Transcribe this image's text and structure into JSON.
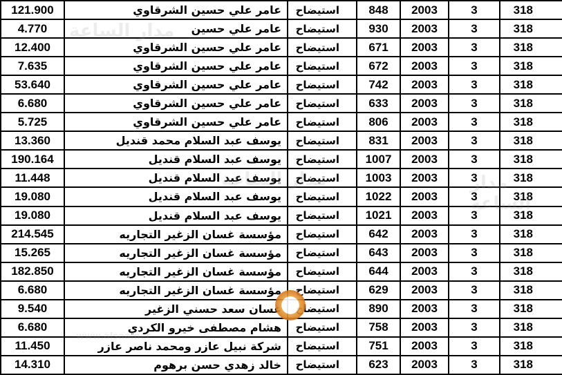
{
  "rows": [
    {
      "amount": "121.900",
      "name": "عامر علي حسين الشرقاوي",
      "type": "استيضاح",
      "number": "848",
      "year": "2003",
      "code": "3",
      "section": "318"
    },
    {
      "amount": "4.770",
      "name": "عامر علي حسين",
      "type": "استيضاح",
      "number": "930",
      "year": "2003",
      "code": "3",
      "section": "318"
    },
    {
      "amount": "12.400",
      "name": "عامر علي حسين الشرقاوي",
      "type": "استيضاح",
      "number": "671",
      "year": "2003",
      "code": "3",
      "section": "318"
    },
    {
      "amount": "7.635",
      "name": "عامر علي حسين الشرقاوي",
      "type": "استيضاح",
      "number": "672",
      "year": "2003",
      "code": "3",
      "section": "318"
    },
    {
      "amount": "53.640",
      "name": "عامر علي حسين الشرقاوي",
      "type": "استيضاح",
      "number": "742",
      "year": "2003",
      "code": "3",
      "section": "318"
    },
    {
      "amount": "6.680",
      "name": "عامر علي حسين الشرقاوي",
      "type": "استيضاح",
      "number": "633",
      "year": "2003",
      "code": "3",
      "section": "318"
    },
    {
      "amount": "5.725",
      "name": "عامر علي حسين الشرقاوي",
      "type": "استيضاح",
      "number": "806",
      "year": "2003",
      "code": "3",
      "section": "318"
    },
    {
      "amount": "13.360",
      "name": "يوسف عبد السلام محمد قنديل",
      "type": "استيضاح",
      "number": "831",
      "year": "2003",
      "code": "3",
      "section": "318"
    },
    {
      "amount": "190.164",
      "name": "يوسف عبد السلام قنديل",
      "type": "استيضاح",
      "number": "1007",
      "year": "2003",
      "code": "3",
      "section": "318"
    },
    {
      "amount": "11.448",
      "name": "يوسف عبد السلام قنديل",
      "type": "استيضاح",
      "number": "1003",
      "year": "2003",
      "code": "3",
      "section": "318"
    },
    {
      "amount": "19.080",
      "name": "يوسف عبد السلام قنديل",
      "type": "استيضاح",
      "number": "1022",
      "year": "2003",
      "code": "3",
      "section": "318"
    },
    {
      "amount": "19.080",
      "name": "يوسف عبد السلام قنديل",
      "type": "استيضاح",
      "number": "1021",
      "year": "2003",
      "code": "3",
      "section": "318"
    },
    {
      "amount": "214.545",
      "name": "مؤسسة غسان الزغير التجاريه",
      "type": "استيضاح",
      "number": "642",
      "year": "2003",
      "code": "3",
      "section": "318"
    },
    {
      "amount": "15.265",
      "name": "مؤسسة غسان الزغير التجاريه",
      "type": "استيضاح",
      "number": "643",
      "year": "2003",
      "code": "3",
      "section": "318"
    },
    {
      "amount": "182.850",
      "name": "مؤسسة غسان الزغير التجاريه",
      "type": "استيضاح",
      "number": "644",
      "year": "2003",
      "code": "3",
      "section": "318"
    },
    {
      "amount": "6.680",
      "name": "مؤسسة غسان الزغير التجاريه",
      "type": "استيضاح",
      "number": "629",
      "year": "2003",
      "code": "3",
      "section": "318"
    },
    {
      "amount": "9.540",
      "name": "غسان سعد حسني الزغير",
      "type": "استيضاح",
      "number": "890",
      "year": "2003",
      "code": "3",
      "section": "318"
    },
    {
      "amount": "6.680",
      "name": "هشام مصطفى خيرو الكردي",
      "type": "استيضاح",
      "number": "758",
      "year": "2003",
      "code": "3",
      "section": "318"
    },
    {
      "amount": "11.450",
      "name": "شركة نبيل عازر ومحمد ناصر عازر",
      "type": "استيضاح",
      "number": "751",
      "year": "2003",
      "code": "3",
      "section": "318"
    },
    {
      "amount": "14.310",
      "name": "خالد زهدي حسن برهوم",
      "type": "استيضاح",
      "number": "623",
      "year": "2003",
      "code": "3",
      "section": "318"
    }
  ],
  "watermark": {
    "text": "مدار الساعة",
    "site": "www.alsaa.net",
    "logo_colors": [
      "#e8a040",
      "#d4761c"
    ]
  }
}
